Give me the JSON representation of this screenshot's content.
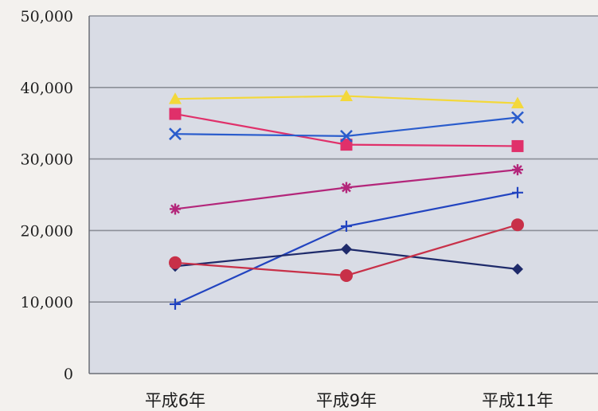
{
  "chart_data": {
    "type": "line",
    "title": "",
    "xlabel": "",
    "ylabel": "",
    "categories": [
      "平成6年",
      "平成9年",
      "平成11年"
    ],
    "ylim": [
      0,
      50000
    ],
    "y_ticks": [
      "0",
      "10,000",
      "20,000",
      "30,000",
      "40,000",
      "50,000"
    ],
    "grid": true,
    "plot_background": "#d9dce5",
    "series": [
      {
        "color": "#f3d83a",
        "marker": "triangle",
        "values": [
          38400,
          38800,
          37800
        ]
      },
      {
        "color": "#e0306a",
        "marker": "square",
        "values": [
          36300,
          32000,
          31800
        ]
      },
      {
        "color": "#2a5ccc",
        "marker": "x",
        "values": [
          33500,
          33200,
          35800
        ]
      },
      {
        "color": "#b3267a",
        "marker": "asterisk",
        "values": [
          23000,
          26000,
          28500
        ]
      },
      {
        "color": "#2244c0",
        "marker": "plus",
        "values": [
          9700,
          20600,
          25300
        ]
      },
      {
        "color": "#1e2a6a",
        "marker": "diamond",
        "values": [
          15000,
          17400,
          14600
        ]
      },
      {
        "color": "#c83048",
        "marker": "circle",
        "values": [
          15500,
          13700,
          20800
        ]
      }
    ]
  }
}
